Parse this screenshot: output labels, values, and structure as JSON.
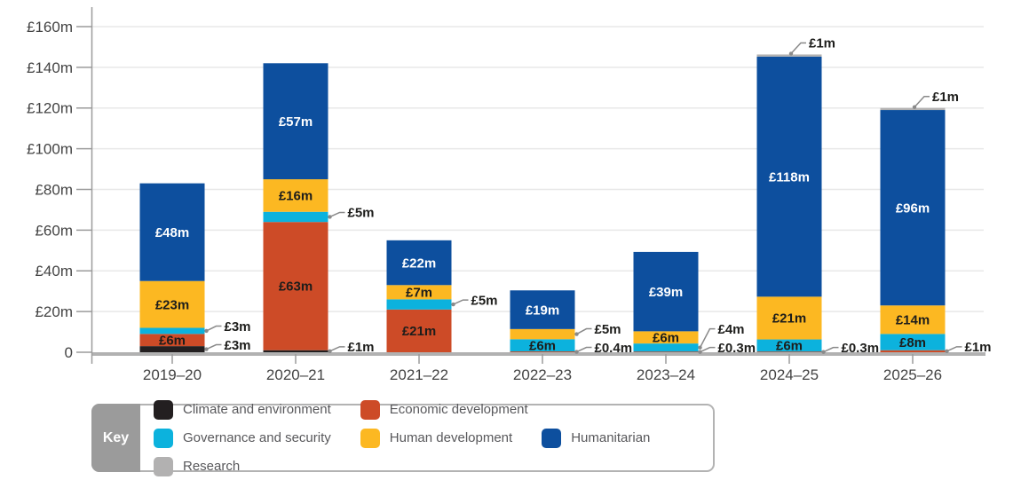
{
  "chart_data": {
    "type": "bar",
    "stacked": true,
    "currency_unit": "£m",
    "ylim": [
      0,
      160
    ],
    "ytick_step": 20,
    "ytick_labels": [
      "0",
      "£20m",
      "£40m",
      "£60m",
      "£80m",
      "£100m",
      "£120m",
      "£140m",
      "£160m"
    ],
    "categories": [
      "2019–20",
      "2020–21",
      "2021–22",
      "2022–23",
      "2023–24",
      "2024–25",
      "2025–26"
    ],
    "legend": {
      "key_label": "Key",
      "items": [
        {
          "id": "climate",
          "label": "Climate and environment",
          "color": "#231f20"
        },
        {
          "id": "economic",
          "label": "Economic development",
          "color": "#cd4b27"
        },
        {
          "id": "governance",
          "label": "Governance and security",
          "color": "#0cb2dd"
        },
        {
          "id": "human",
          "label": "Human development",
          "color": "#fcb822"
        },
        {
          "id": "humanitarian",
          "label": "Humanitarian",
          "color": "#0d4f9e"
        },
        {
          "id": "research",
          "label": "Research",
          "color": "#b2b1b1"
        }
      ]
    },
    "bars": [
      {
        "category": "2019–20",
        "segments": [
          {
            "series": "climate",
            "value": 3,
            "label": "£3m",
            "placement": "callout-right"
          },
          {
            "series": "economic",
            "value": 6,
            "label": "£6m",
            "placement": "inside"
          },
          {
            "series": "governance",
            "value": 3,
            "label": "£3m",
            "placement": "callout-right"
          },
          {
            "series": "human",
            "value": 23,
            "label": "£23m",
            "placement": "inside"
          },
          {
            "series": "humanitarian",
            "value": 48,
            "label": "£48m",
            "placement": "inside"
          }
        ]
      },
      {
        "category": "2020–21",
        "segments": [
          {
            "series": "climate",
            "value": 1,
            "label": "£1m",
            "placement": "callout-right"
          },
          {
            "series": "economic",
            "value": 63,
            "label": "£63m",
            "placement": "inside"
          },
          {
            "series": "governance",
            "value": 5,
            "label": "£5m",
            "placement": "callout-right"
          },
          {
            "series": "human",
            "value": 16,
            "label": "£16m",
            "placement": "inside"
          },
          {
            "series": "humanitarian",
            "value": 57,
            "label": "£57m",
            "placement": "inside"
          }
        ]
      },
      {
        "category": "2021–22",
        "segments": [
          {
            "series": "economic",
            "value": 21,
            "label": "£21m",
            "placement": "inside"
          },
          {
            "series": "governance",
            "value": 5,
            "label": "£5m",
            "placement": "callout-right"
          },
          {
            "series": "human",
            "value": 7,
            "label": "£7m",
            "placement": "inside"
          },
          {
            "series": "humanitarian",
            "value": 22,
            "label": "£22m",
            "placement": "inside"
          }
        ]
      },
      {
        "category": "2022–23",
        "segments": [
          {
            "series": "economic",
            "value": 0.4,
            "label": "£0.4m",
            "placement": "callout-right"
          },
          {
            "series": "governance",
            "value": 6,
            "label": "£6m",
            "placement": "inside"
          },
          {
            "series": "human",
            "value": 5,
            "label": "£5m",
            "placement": "callout-right"
          },
          {
            "series": "humanitarian",
            "value": 19,
            "label": "£19m",
            "placement": "inside"
          }
        ]
      },
      {
        "category": "2023–24",
        "segments": [
          {
            "series": "economic",
            "value": 0.3,
            "label": "£0.3m",
            "placement": "callout-right"
          },
          {
            "series": "governance",
            "value": 4,
            "label": "£4m",
            "placement": "callout-right"
          },
          {
            "series": "human",
            "value": 6,
            "label": "£6m",
            "placement": "inside"
          },
          {
            "series": "humanitarian",
            "value": 39,
            "label": "£39m",
            "placement": "inside"
          }
        ]
      },
      {
        "category": "2024–25",
        "segments": [
          {
            "series": "economic",
            "value": 0.3,
            "label": "£0.3m",
            "placement": "callout-right"
          },
          {
            "series": "governance",
            "value": 6,
            "label": "£6m",
            "placement": "inside"
          },
          {
            "series": "human",
            "value": 21,
            "label": "£21m",
            "placement": "inside"
          },
          {
            "series": "humanitarian",
            "value": 118,
            "label": "£118m",
            "placement": "inside"
          },
          {
            "series": "research",
            "value": 1,
            "label": "£1m",
            "placement": "callout-top"
          }
        ]
      },
      {
        "category": "2025–26",
        "segments": [
          {
            "series": "economic",
            "value": 1,
            "label": "£1m",
            "placement": "callout-right"
          },
          {
            "series": "governance",
            "value": 8,
            "label": "£8m",
            "placement": "inside"
          },
          {
            "series": "human",
            "value": 14,
            "label": "£14m",
            "placement": "inside"
          },
          {
            "series": "humanitarian",
            "value": 96,
            "label": "£96m",
            "placement": "inside"
          },
          {
            "series": "research",
            "value": 1,
            "label": "£1m",
            "placement": "callout-top"
          }
        ]
      }
    ],
    "style_colors": {
      "axis": "#9b9b9b",
      "baseline": "#b1b1b1",
      "gridline": "#e8e8e8",
      "axis_text": "#444444",
      "dark_label": "#1d1d1b",
      "white_label": "#ffffff",
      "callout_line": "#8a8a8a"
    }
  }
}
